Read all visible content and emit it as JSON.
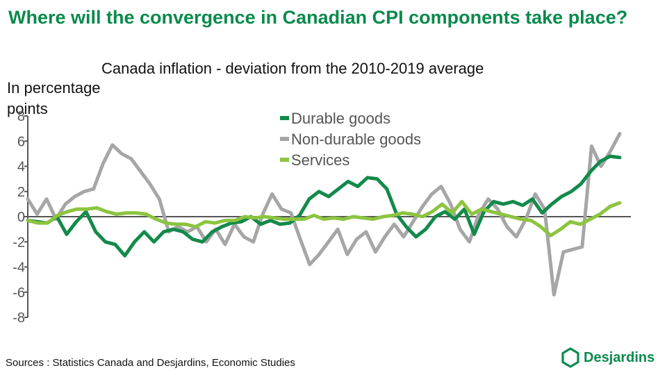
{
  "slide": {
    "title": "Where will the convergence in Canadian CPI components take place?",
    "sources": "Sources : Statistics Canada and Desjardins, Economic Studies",
    "logo_text": "Desjardins",
    "brand_color": "#0a8a4c"
  },
  "chart_data": {
    "type": "line",
    "title": "Canada inflation - deviation from the 2010-2019 average",
    "ylabel": "In percentage points",
    "xlabel": "",
    "ylim": [
      -8,
      8
    ],
    "yticks": [
      8,
      6,
      4,
      2,
      0,
      -2,
      -4,
      -6,
      -8
    ],
    "grid": false,
    "legend": "top-center",
    "zero_line": true,
    "series": [
      {
        "name": "Durable goods",
        "color": "#138a4a",
        "values": [
          -0.3,
          -0.4,
          -0.5,
          0.0,
          -1.4,
          -0.4,
          0.4,
          -1.2,
          -2.0,
          -2.2,
          -3.1,
          -2.0,
          -1.2,
          -2.0,
          -1.2,
          -1.0,
          -1.2,
          -1.8,
          -2.0,
          -1.2,
          -0.8,
          -0.5,
          -0.4,
          0.0,
          -0.6,
          -0.3,
          -0.6,
          -0.5,
          0.1,
          1.4,
          2.0,
          1.6,
          2.2,
          2.8,
          2.4,
          3.1,
          3.0,
          2.2,
          0.2,
          -0.8,
          -1.6,
          -1.0,
          0.0,
          0.4,
          -0.2,
          0.6,
          -1.4,
          0.4,
          1.2,
          1.0,
          1.2,
          0.9,
          1.4,
          0.3,
          1.0,
          1.6,
          2.0,
          2.6,
          3.6,
          4.4,
          4.8,
          4.7
        ]
      },
      {
        "name": "Non-durable goods",
        "color": "#a6a6a6",
        "values": [
          1.4,
          0.2,
          1.4,
          -0.2,
          1.0,
          1.6,
          2.0,
          2.2,
          4.2,
          5.7,
          5.0,
          4.6,
          3.6,
          2.6,
          1.4,
          -1.2,
          -0.8,
          -1.2,
          -0.8,
          -2.0,
          -1.0,
          -2.2,
          -0.6,
          -1.6,
          -2.0,
          0.2,
          1.8,
          0.6,
          0.3,
          -1.8,
          -3.8,
          -3.0,
          -2.0,
          -1.0,
          -3.0,
          -1.8,
          -1.2,
          -2.8,
          -1.6,
          -0.6,
          -1.6,
          -0.4,
          0.8,
          1.8,
          2.4,
          1.0,
          -1.0,
          -2.0,
          0.2,
          1.4,
          0.6,
          -0.8,
          -1.6,
          -0.2,
          1.8,
          0.6,
          -6.2,
          -2.8,
          -2.6,
          -2.4,
          5.6,
          4.0,
          5.2,
          6.6
        ]
      },
      {
        "name": "Services",
        "color": "#8cc43f",
        "values": [
          -0.3,
          -0.5,
          -0.5,
          0.1,
          0.4,
          0.6,
          0.6,
          0.7,
          0.4,
          0.2,
          0.3,
          0.3,
          0.2,
          -0.2,
          -0.5,
          -0.6,
          -0.6,
          -0.8,
          -0.4,
          -0.5,
          -0.3,
          -0.3,
          0.0,
          -0.1,
          0.0,
          -0.1,
          -0.2,
          -0.2,
          -0.2,
          0.1,
          -0.2,
          -0.1,
          -0.2,
          0.0,
          -0.1,
          -0.2,
          0.0,
          0.1,
          0.3,
          0.2,
          0.0,
          0.4,
          1.0,
          0.3,
          1.2,
          0.2,
          0.6,
          0.4,
          0.2,
          0.0,
          -0.2,
          -0.3,
          -0.8,
          -1.5,
          -1.0,
          -0.4,
          -0.6,
          -0.2,
          0.2,
          0.8,
          1.1
        ]
      }
    ]
  }
}
